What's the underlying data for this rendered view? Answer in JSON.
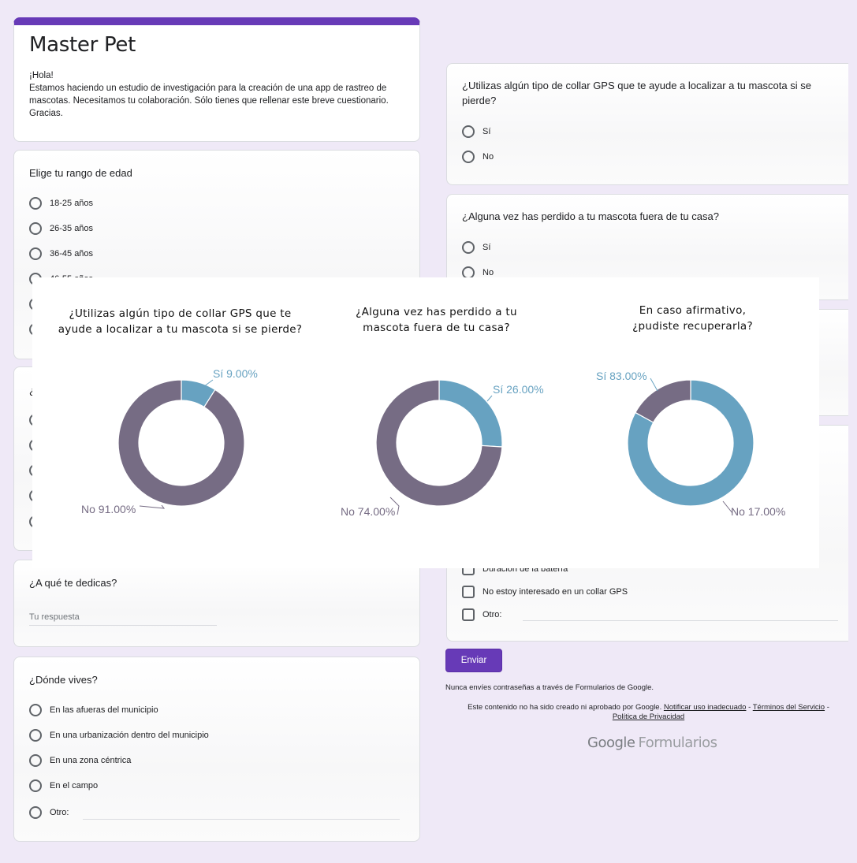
{
  "form": {
    "title": "Master Pet",
    "greeting": "¡Hola!",
    "description": "Estamos haciendo un estudio de investigación para la creación de una app de rastreo de mascotas. Necesitamos tu colaboración. Sólo tienes que rellenar este breve cuestionario. Gracias.",
    "accent_color": "#673ab7",
    "background_color": "#efe9f7"
  },
  "left_column": {
    "age": {
      "question": "Elige tu rango de edad",
      "options": [
        "18-25 años",
        "26-35 años",
        "36-45 años",
        "46-55 años"
      ]
    },
    "hidden_question": {
      "question_start": "¿"
    },
    "occupation": {
      "question": "¿A qué te dedicas?",
      "placeholder": "Tu respuesta"
    },
    "residence": {
      "question": "¿Dónde vives?",
      "options": [
        "En las afueras del municipio",
        "En una urbanización dentro del municipio",
        "En una zona céntrica",
        "En el campo",
        "Otro:"
      ]
    }
  },
  "right_column": {
    "gps_collar": {
      "question": "¿Utilizas algún tipo de collar GPS que te ayude a localizar a tu mascota si se pierde?",
      "options": [
        "Sí",
        "No"
      ]
    },
    "lost_pet": {
      "question": "¿Alguna vez has perdido a tu mascota fuera de tu casa?",
      "options": [
        "Sí",
        "No"
      ]
    },
    "features": {
      "options": [
        "Duración de la batería",
        "No estoy interesado en un collar GPS",
        "Otro:"
      ]
    },
    "submit_label": "Enviar",
    "footer_note": "Nunca envíes contraseñas a través de Formularios de Google.",
    "legal_text": "Este contenido no ha sido creado ni aprobado por Google.",
    "legal_links": [
      "Notificar uso inadecuado",
      "Términos del Servicio",
      "Política de Privacidad"
    ],
    "legal_sep": " - ",
    "brand_google": "Google",
    "brand_forms": "Formularios"
  },
  "chart_data": [
    {
      "type": "pie",
      "variant": "donut",
      "title": "¿Utilizas algún tipo de collar GPS que te ayude a localizar a tu mascota si se pierde?",
      "categories": [
        "Sí",
        "No"
      ],
      "values": [
        9.0,
        91.0
      ],
      "labels": [
        "Sí 9.00%",
        "No 91.00%"
      ],
      "colors": [
        "#67a2c1",
        "#766c84"
      ]
    },
    {
      "type": "pie",
      "variant": "donut",
      "title": "¿Alguna vez has perdido a tu mascota fuera de tu casa?",
      "categories": [
        "Sí",
        "No"
      ],
      "values": [
        26.0,
        74.0
      ],
      "labels": [
        "Sí 26.00%",
        "No 74.00%"
      ],
      "colors": [
        "#67a2c1",
        "#766c84"
      ]
    },
    {
      "type": "pie",
      "variant": "donut",
      "title": "En caso afirmativo, ¿pudiste recuperarla?",
      "categories": [
        "Sí",
        "No"
      ],
      "values": [
        83.0,
        17.0
      ],
      "labels": [
        "Sí 83.00%",
        "No 17.00%"
      ],
      "colors": [
        "#67a2c1",
        "#766c84"
      ]
    }
  ],
  "chart_titles": {
    "c1_line1": "¿Utilizas algún tipo de collar GPS que te",
    "c1_line2": "ayude a localizar a tu mascota si se pierde?",
    "c2_line1": "¿Alguna vez has perdido a tu",
    "c2_line2": "mascota fuera de tu casa?",
    "c3_line1": "En caso afirmativo,",
    "c3_line2": "¿pudiste recuperarla?"
  }
}
